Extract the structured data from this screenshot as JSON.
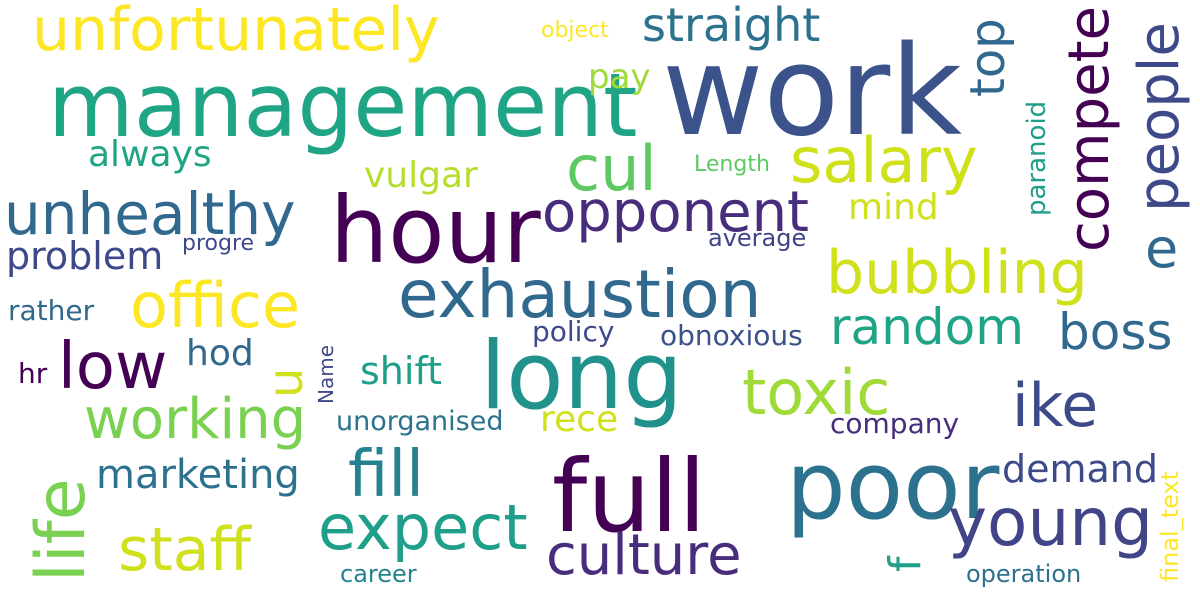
{
  "words": {
    "work": "work",
    "management": "management",
    "unfortunately": "unfortunately",
    "hour": "hour",
    "long": "long",
    "full": "full",
    "poor": "poor",
    "salary": "salary",
    "exhaustion": "exhaustion",
    "office": "office",
    "unhealthy": "unhealthy",
    "opponent": "opponent",
    "bubbling": "bubbling",
    "random": "random",
    "cul": "cul",
    "low": "low",
    "working": "working",
    "toxic": "toxic",
    "ike": "ike",
    "boss": "boss",
    "fill": "fill",
    "expect": "expect",
    "staff": "staff",
    "culture": "culture",
    "young": "young",
    "straight": "straight",
    "marketing": "marketing",
    "demand": "demand",
    "problem": "problem",
    "always": "always",
    "vulgar": "vulgar",
    "mind": "mind",
    "shift": "shift",
    "hod": "hod",
    "rece": "rece",
    "pay": "pay",
    "e": "e",
    "object": "object",
    "length": "Length",
    "progre": "progre",
    "average": "average",
    "rather": "rather",
    "policy": "policy",
    "obnoxious": "obnoxious",
    "hr": "hr",
    "unorganised": "unorganised",
    "company": "company",
    "career": "career",
    "operation": "operation",
    "top": "top",
    "compete": "compete",
    "people": "people",
    "paranoid": "paranoid",
    "u": "u",
    "name": "Name",
    "life": "life",
    "f": "f",
    "final_text": "final_text"
  }
}
